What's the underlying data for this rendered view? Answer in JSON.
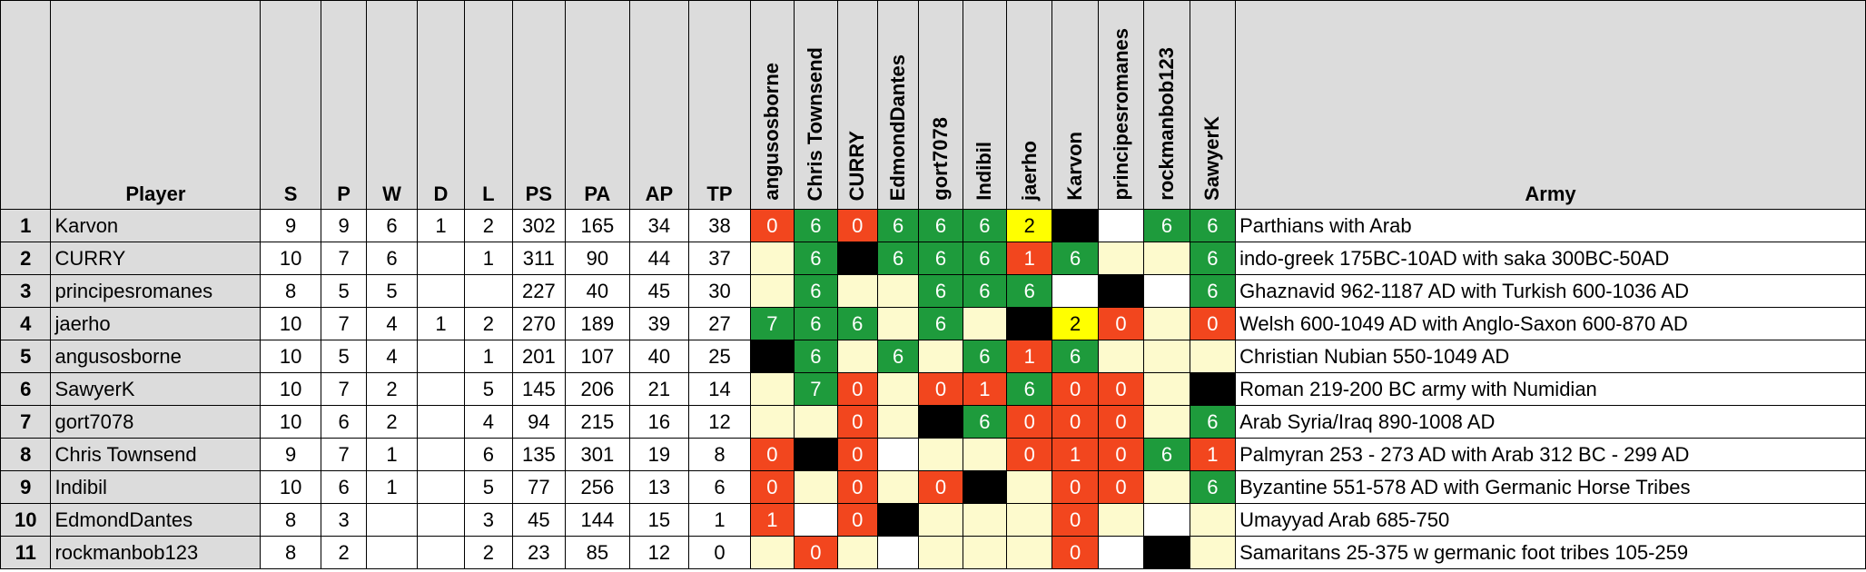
{
  "columns": {
    "player": "Player",
    "army": "Army",
    "stats": [
      "S",
      "P",
      "W",
      "D",
      "L",
      "PS",
      "PA",
      "AP",
      "TP"
    ],
    "opponents": [
      "angusosborne",
      "Chris Townsend",
      "CURRY",
      "EdmondDantes",
      "gort7078",
      "Indibil",
      "jaerho",
      "Karvon",
      "principesromanes",
      "rockmanbob123",
      "SawyerK"
    ]
  },
  "colors": {
    "green": "#1e9b3c",
    "red": "#f2461e",
    "yellow": "#ffff00",
    "black": "#000000",
    "cream": "#fdfacd",
    "white": "#ffffff",
    "header_gray": "#dcdcdc"
  },
  "rows": [
    {
      "rank": "1",
      "player": "Karvon",
      "stats": [
        "9",
        "9",
        "6",
        "1",
        "2",
        "302",
        "165",
        "34",
        "38"
      ],
      "cells": [
        {
          "v": "0",
          "c": "red"
        },
        {
          "v": "6",
          "c": "green"
        },
        {
          "v": "0",
          "c": "red"
        },
        {
          "v": "6",
          "c": "green"
        },
        {
          "v": "6",
          "c": "green"
        },
        {
          "v": "6",
          "c": "green"
        },
        {
          "v": "2",
          "c": "yellow"
        },
        {
          "v": "",
          "c": "black"
        },
        {
          "v": "",
          "c": "white"
        },
        {
          "v": "6",
          "c": "green"
        },
        {
          "v": "6",
          "c": "green"
        }
      ],
      "army": "Parthians with Arab"
    },
    {
      "rank": "2",
      "player": "CURRY",
      "stats": [
        "10",
        "7",
        "6",
        "",
        "1",
        "311",
        "90",
        "44",
        "37"
      ],
      "cells": [
        {
          "v": "",
          "c": "cream"
        },
        {
          "v": "6",
          "c": "green"
        },
        {
          "v": "",
          "c": "black"
        },
        {
          "v": "6",
          "c": "green"
        },
        {
          "v": "6",
          "c": "green"
        },
        {
          "v": "6",
          "c": "green"
        },
        {
          "v": "1",
          "c": "red"
        },
        {
          "v": "6",
          "c": "green"
        },
        {
          "v": "",
          "c": "cream"
        },
        {
          "v": "",
          "c": "cream"
        },
        {
          "v": "6",
          "c": "green"
        }
      ],
      "army": "indo-greek 175BC-10AD with saka 300BC-50AD"
    },
    {
      "rank": "3",
      "player": "principesromanes",
      "stats": [
        "8",
        "5",
        "5",
        "",
        "",
        "227",
        "40",
        "45",
        "30"
      ],
      "cells": [
        {
          "v": "",
          "c": "cream"
        },
        {
          "v": "6",
          "c": "green"
        },
        {
          "v": "",
          "c": "cream"
        },
        {
          "v": "",
          "c": "cream"
        },
        {
          "v": "6",
          "c": "green"
        },
        {
          "v": "6",
          "c": "green"
        },
        {
          "v": "6",
          "c": "green"
        },
        {
          "v": "",
          "c": "white"
        },
        {
          "v": "",
          "c": "black"
        },
        {
          "v": "",
          "c": "white"
        },
        {
          "v": "6",
          "c": "green"
        }
      ],
      "army": "Ghaznavid 962-1187 AD with Turkish 600-1036 AD"
    },
    {
      "rank": "4",
      "player": "jaerho",
      "stats": [
        "10",
        "7",
        "4",
        "1",
        "2",
        "270",
        "189",
        "39",
        "27"
      ],
      "cells": [
        {
          "v": "7",
          "c": "green"
        },
        {
          "v": "6",
          "c": "green"
        },
        {
          "v": "6",
          "c": "green"
        },
        {
          "v": "",
          "c": "cream"
        },
        {
          "v": "6",
          "c": "green"
        },
        {
          "v": "",
          "c": "cream"
        },
        {
          "v": "",
          "c": "black"
        },
        {
          "v": "2",
          "c": "yellow"
        },
        {
          "v": "0",
          "c": "red"
        },
        {
          "v": "",
          "c": "cream"
        },
        {
          "v": "0",
          "c": "red"
        }
      ],
      "army": "Welsh 600-1049 AD with Anglo-Saxon 600-870 AD"
    },
    {
      "rank": "5",
      "player": "angusosborne",
      "stats": [
        "10",
        "5",
        "4",
        "",
        "1",
        "201",
        "107",
        "40",
        "25"
      ],
      "cells": [
        {
          "v": "",
          "c": "black"
        },
        {
          "v": "6",
          "c": "green"
        },
        {
          "v": "",
          "c": "cream"
        },
        {
          "v": "6",
          "c": "green"
        },
        {
          "v": "",
          "c": "cream"
        },
        {
          "v": "6",
          "c": "green"
        },
        {
          "v": "1",
          "c": "red"
        },
        {
          "v": "6",
          "c": "green"
        },
        {
          "v": "",
          "c": "cream"
        },
        {
          "v": "",
          "c": "cream"
        },
        {
          "v": "",
          "c": "cream"
        }
      ],
      "army": "Christian Nubian 550-1049 AD"
    },
    {
      "rank": "6",
      "player": "SawyerK",
      "stats": [
        "10",
        "7",
        "2",
        "",
        "5",
        "145",
        "206",
        "21",
        "14"
      ],
      "cells": [
        {
          "v": "",
          "c": "cream"
        },
        {
          "v": "7",
          "c": "green"
        },
        {
          "v": "0",
          "c": "red"
        },
        {
          "v": "",
          "c": "cream"
        },
        {
          "v": "0",
          "c": "red"
        },
        {
          "v": "1",
          "c": "red"
        },
        {
          "v": "6",
          "c": "green"
        },
        {
          "v": "0",
          "c": "red"
        },
        {
          "v": "0",
          "c": "red"
        },
        {
          "v": "",
          "c": "cream"
        },
        {
          "v": "",
          "c": "black"
        }
      ],
      "army": "Roman 219-200 BC army with Numidian"
    },
    {
      "rank": "7",
      "player": "gort7078",
      "stats": [
        "10",
        "6",
        "2",
        "",
        "4",
        "94",
        "215",
        "16",
        "12"
      ],
      "cells": [
        {
          "v": "",
          "c": "cream"
        },
        {
          "v": "",
          "c": "cream"
        },
        {
          "v": "0",
          "c": "red"
        },
        {
          "v": "",
          "c": "cream"
        },
        {
          "v": "",
          "c": "black"
        },
        {
          "v": "6",
          "c": "green"
        },
        {
          "v": "0",
          "c": "red"
        },
        {
          "v": "0",
          "c": "red"
        },
        {
          "v": "0",
          "c": "red"
        },
        {
          "v": "",
          "c": "cream"
        },
        {
          "v": "6",
          "c": "green"
        }
      ],
      "army": "Arab Syria/Iraq 890-1008 AD"
    },
    {
      "rank": "8",
      "player": "Chris Townsend",
      "stats": [
        "9",
        "7",
        "1",
        "",
        "6",
        "135",
        "301",
        "19",
        "8"
      ],
      "cells": [
        {
          "v": "0",
          "c": "red"
        },
        {
          "v": "",
          "c": "black"
        },
        {
          "v": "0",
          "c": "red"
        },
        {
          "v": "",
          "c": "white"
        },
        {
          "v": "",
          "c": "cream"
        },
        {
          "v": "",
          "c": "cream"
        },
        {
          "v": "0",
          "c": "red"
        },
        {
          "v": "1",
          "c": "red"
        },
        {
          "v": "0",
          "c": "red"
        },
        {
          "v": "6",
          "c": "green"
        },
        {
          "v": "1",
          "c": "red"
        }
      ],
      "army": "Palmyran 253 - 273 AD with Arab 312 BC - 299 AD"
    },
    {
      "rank": "9",
      "player": "Indibil",
      "stats": [
        "10",
        "6",
        "1",
        "",
        "5",
        "77",
        "256",
        "13",
        "6"
      ],
      "cells": [
        {
          "v": "0",
          "c": "red"
        },
        {
          "v": "",
          "c": "cream"
        },
        {
          "v": "0",
          "c": "red"
        },
        {
          "v": "",
          "c": "cream"
        },
        {
          "v": "0",
          "c": "red"
        },
        {
          "v": "",
          "c": "black"
        },
        {
          "v": "",
          "c": "cream"
        },
        {
          "v": "0",
          "c": "red"
        },
        {
          "v": "0",
          "c": "red"
        },
        {
          "v": "",
          "c": "cream"
        },
        {
          "v": "6",
          "c": "green"
        }
      ],
      "army": "Byzantine 551-578 AD with Germanic Horse Tribes"
    },
    {
      "rank": "10",
      "player": "EdmondDantes",
      "stats": [
        "8",
        "3",
        "",
        "",
        "3",
        "45",
        "144",
        "15",
        "1"
      ],
      "cells": [
        {
          "v": "1",
          "c": "red"
        },
        {
          "v": "",
          "c": "white"
        },
        {
          "v": "0",
          "c": "red"
        },
        {
          "v": "",
          "c": "black"
        },
        {
          "v": "",
          "c": "cream"
        },
        {
          "v": "",
          "c": "cream"
        },
        {
          "v": "",
          "c": "cream"
        },
        {
          "v": "0",
          "c": "red"
        },
        {
          "v": "",
          "c": "cream"
        },
        {
          "v": "",
          "c": "white"
        },
        {
          "v": "",
          "c": "cream"
        }
      ],
      "army": "Umayyad Arab 685-750"
    },
    {
      "rank": "11",
      "player": "rockmanbob123",
      "stats": [
        "8",
        "2",
        "",
        "",
        "2",
        "23",
        "85",
        "12",
        "0"
      ],
      "cells": [
        {
          "v": "",
          "c": "cream"
        },
        {
          "v": "0",
          "c": "red"
        },
        {
          "v": "",
          "c": "cream"
        },
        {
          "v": "",
          "c": "white"
        },
        {
          "v": "",
          "c": "cream"
        },
        {
          "v": "",
          "c": "cream"
        },
        {
          "v": "",
          "c": "cream"
        },
        {
          "v": "0",
          "c": "red"
        },
        {
          "v": "",
          "c": "white"
        },
        {
          "v": "",
          "c": "black"
        },
        {
          "v": "",
          "c": "cream"
        }
      ],
      "army": "Samaritans 25-375 w germanic foot tribes 105-259"
    }
  ]
}
